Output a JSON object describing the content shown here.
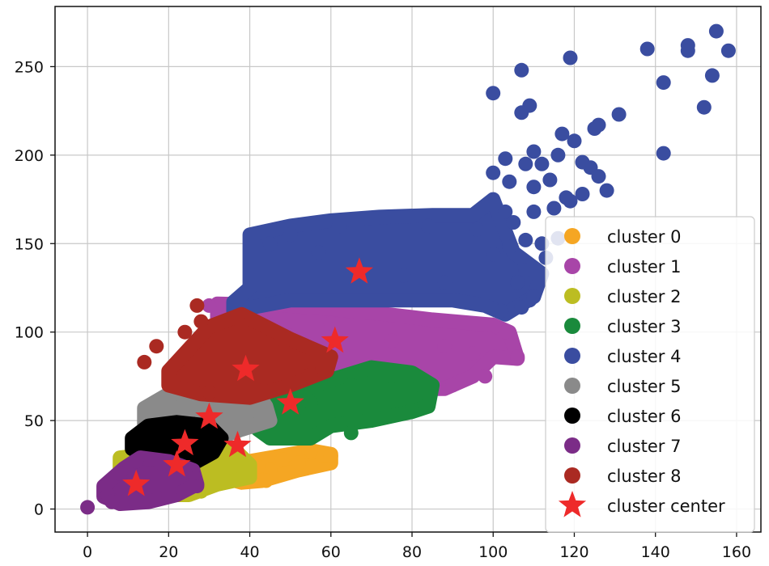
{
  "chart_data": {
    "type": "scatter",
    "title": "",
    "xlabel": "",
    "ylabel": "",
    "xlim": [
      -8,
      166
    ],
    "ylim": [
      -13,
      284
    ],
    "grid": true,
    "legend_position": "lower right",
    "x_ticks": [
      0,
      20,
      40,
      60,
      80,
      100,
      120,
      140,
      160
    ],
    "y_ticks": [
      0,
      50,
      100,
      150,
      200,
      250
    ],
    "x_tick_labels": [
      "0",
      "20",
      "40",
      "60",
      "80",
      "100",
      "120",
      "140",
      "160"
    ],
    "y_tick_labels": [
      "0",
      "50",
      "100",
      "150",
      "200",
      "250"
    ],
    "series": [
      {
        "name": "cluster 0",
        "color": "#f5a623",
        "region": [
          [
            18,
            23
          ],
          [
            40,
            27
          ],
          [
            50,
            31
          ],
          [
            55,
            33
          ],
          [
            60,
            31
          ],
          [
            60,
            26
          ],
          [
            52,
            22
          ],
          [
            43,
            16
          ],
          [
            38,
            15
          ],
          [
            30,
            20
          ],
          [
            20,
            20
          ]
        ],
        "points": [
          [
            32,
            19
          ],
          [
            38,
            17
          ],
          [
            45,
            22
          ],
          [
            52,
            26
          ],
          [
            58,
            30
          ],
          [
            48,
            28
          ],
          [
            42,
            24
          ],
          [
            36,
            22
          ],
          [
            55,
            33
          ],
          [
            60,
            30
          ],
          [
            22,
            22
          ],
          [
            44,
            16
          ]
        ]
      },
      {
        "name": "cluster 1",
        "color": "#a845a8",
        "region": [
          [
            32,
            116
          ],
          [
            50,
            115
          ],
          [
            70,
            111
          ],
          [
            85,
            107
          ],
          [
            100,
            104
          ],
          [
            104,
            100
          ],
          [
            106,
            85
          ],
          [
            100,
            86
          ],
          [
            95,
            75
          ],
          [
            88,
            68
          ],
          [
            80,
            68
          ],
          [
            70,
            73
          ],
          [
            50,
            87
          ],
          [
            40,
            95
          ],
          [
            32,
            108
          ]
        ],
        "points": [
          [
            30,
            115
          ],
          [
            103,
            100
          ],
          [
            106,
            86
          ],
          [
            98,
            75
          ],
          [
            90,
            70
          ],
          [
            82,
            68
          ],
          [
            75,
            95
          ],
          [
            60,
            105
          ],
          [
            45,
            112
          ],
          [
            88,
            92
          ],
          [
            95,
            88
          ],
          [
            50,
            98
          ]
        ]
      },
      {
        "name": "cluster 2",
        "color": "#bcbd22",
        "region": [
          [
            8,
            29
          ],
          [
            20,
            32
          ],
          [
            30,
            36
          ],
          [
            36,
            34
          ],
          [
            40,
            25
          ],
          [
            40,
            18
          ],
          [
            32,
            14
          ],
          [
            25,
            8
          ],
          [
            18,
            8
          ],
          [
            12,
            12
          ],
          [
            8,
            22
          ]
        ],
        "points": [
          [
            12,
            28
          ],
          [
            22,
            32
          ],
          [
            30,
            30
          ],
          [
            38,
            24
          ],
          [
            39,
            18
          ],
          [
            33,
            15
          ],
          [
            28,
            10
          ],
          [
            22,
            12
          ],
          [
            16,
            20
          ],
          [
            26,
            24
          ]
        ]
      },
      {
        "name": "cluster 3",
        "color": "#1a8a3c",
        "region": [
          [
            40,
            60
          ],
          [
            50,
            65
          ],
          [
            60,
            73
          ],
          [
            70,
            80
          ],
          [
            80,
            77
          ],
          [
            85,
            70
          ],
          [
            84,
            58
          ],
          [
            80,
            55
          ],
          [
            70,
            50
          ],
          [
            60,
            47
          ],
          [
            55,
            40
          ],
          [
            45,
            40
          ],
          [
            42,
            45
          ],
          [
            40,
            50
          ]
        ],
        "points": [
          [
            42,
            50
          ],
          [
            55,
            60
          ],
          [
            65,
            70
          ],
          [
            75,
            75
          ],
          [
            82,
            70
          ],
          [
            84,
            64
          ],
          [
            80,
            56
          ],
          [
            65,
            50
          ],
          [
            58,
            45
          ],
          [
            65,
            43
          ],
          [
            62,
            48
          ],
          [
            48,
            58
          ]
        ]
      },
      {
        "name": "cluster 4",
        "color": "#3a4da0",
        "region": [
          [
            36,
            117
          ],
          [
            40,
            125
          ],
          [
            40,
            155
          ],
          [
            50,
            160
          ],
          [
            60,
            163
          ],
          [
            72,
            165
          ],
          [
            85,
            166
          ],
          [
            95,
            166
          ],
          [
            100,
            175
          ],
          [
            105,
            145
          ],
          [
            112,
            133
          ],
          [
            110,
            120
          ],
          [
            103,
            110
          ],
          [
            98,
            115
          ],
          [
            90,
            118
          ],
          [
            70,
            118
          ],
          [
            50,
            118
          ],
          [
            36,
            112
          ]
        ],
        "points": [
          [
            138,
            260
          ],
          [
            148,
            262
          ],
          [
            148,
            259
          ],
          [
            155,
            270
          ],
          [
            158,
            259
          ],
          [
            142,
            241
          ],
          [
            154,
            245
          ],
          [
            152,
            227
          ],
          [
            142,
            201
          ],
          [
            100,
            235
          ],
          [
            107,
            248
          ],
          [
            109,
            228
          ],
          [
            107,
            224
          ],
          [
            119,
            255
          ],
          [
            131,
            223
          ],
          [
            126,
            217
          ],
          [
            125,
            215
          ],
          [
            110,
            202
          ],
          [
            117,
            212
          ],
          [
            120,
            208
          ],
          [
            103,
            198
          ],
          [
            108,
            195
          ],
          [
            112,
            195
          ],
          [
            116,
            200
          ],
          [
            100,
            190
          ],
          [
            104,
            185
          ],
          [
            110,
            182
          ],
          [
            114,
            186
          ],
          [
            118,
            176
          ],
          [
            122,
            178
          ],
          [
            124,
            193
          ],
          [
            126,
            188
          ],
          [
            122,
            196
          ],
          [
            128,
            180
          ],
          [
            115,
            170
          ],
          [
            110,
            168
          ],
          [
            119,
            174
          ],
          [
            103,
            168
          ],
          [
            105,
            162
          ],
          [
            108,
            152
          ],
          [
            112,
            150
          ],
          [
            116,
            153
          ],
          [
            104,
            148
          ],
          [
            108,
            135
          ],
          [
            106,
            128
          ],
          [
            109,
            118
          ],
          [
            107,
            114
          ],
          [
            110,
            120
          ],
          [
            113,
            142
          ],
          [
            102,
            112
          ],
          [
            62,
            160
          ],
          [
            50,
            155
          ],
          [
            45,
            150
          ],
          [
            57,
            145
          ],
          [
            78,
            132
          ],
          [
            88,
            128
          ],
          [
            96,
            158
          ],
          [
            100,
            144
          ],
          [
            84,
            160
          ]
        ]
      },
      {
        "name": "cluster 5",
        "color": "#8a8a8a",
        "region": [
          [
            14,
            57
          ],
          [
            20,
            65
          ],
          [
            30,
            67
          ],
          [
            42,
            65
          ],
          [
            44,
            58
          ],
          [
            45,
            50
          ],
          [
            38,
            45
          ],
          [
            32,
            40
          ],
          [
            23,
            40
          ],
          [
            14,
            48
          ]
        ],
        "points": [
          [
            15,
            55
          ],
          [
            20,
            62
          ],
          [
            28,
            66
          ],
          [
            38,
            62
          ],
          [
            44,
            54
          ],
          [
            40,
            48
          ],
          [
            32,
            43
          ],
          [
            22,
            44
          ],
          [
            30,
            55
          ],
          [
            26,
            60
          ]
        ]
      },
      {
        "name": "cluster 6",
        "color": "#000000",
        "region": [
          [
            11,
            40
          ],
          [
            15,
            47
          ],
          [
            22,
            49
          ],
          [
            30,
            47
          ],
          [
            33,
            40
          ],
          [
            31,
            32
          ],
          [
            27,
            27
          ],
          [
            20,
            26
          ],
          [
            14,
            30
          ],
          [
            11,
            34
          ]
        ],
        "points": [
          [
            12,
            38
          ],
          [
            18,
            46
          ],
          [
            26,
            48
          ],
          [
            32,
            42
          ],
          [
            30,
            32
          ],
          [
            24,
            28
          ],
          [
            16,
            31
          ],
          [
            20,
            38
          ]
        ]
      },
      {
        "name": "cluster 7",
        "color": "#7b2c87",
        "region": [
          [
            4,
            13
          ],
          [
            9,
            23
          ],
          [
            13,
            29
          ],
          [
            20,
            27
          ],
          [
            26,
            22
          ],
          [
            27,
            14
          ],
          [
            22,
            8
          ],
          [
            15,
            4
          ],
          [
            8,
            3
          ],
          [
            4,
            7
          ]
        ],
        "points": [
          [
            0,
            1
          ],
          [
            5,
            8
          ],
          [
            8,
            20
          ],
          [
            12,
            27
          ],
          [
            18,
            26
          ],
          [
            24,
            21
          ],
          [
            27,
            13
          ],
          [
            20,
            8
          ],
          [
            12,
            5
          ],
          [
            6,
            4
          ]
        ]
      },
      {
        "name": "cluster 8",
        "color": "#aa2a22",
        "region": [
          [
            20,
            78
          ],
          [
            30,
            103
          ],
          [
            38,
            110
          ],
          [
            50,
            96
          ],
          [
            60,
            86
          ],
          [
            59,
            78
          ],
          [
            50,
            70
          ],
          [
            40,
            63
          ],
          [
            28,
            65
          ],
          [
            20,
            70
          ]
        ],
        "points": [
          [
            14,
            83
          ],
          [
            17,
            92
          ],
          [
            24,
            100
          ],
          [
            28,
            106
          ],
          [
            27,
            115
          ],
          [
            21,
            72
          ],
          [
            30,
            66
          ],
          [
            42,
            67
          ],
          [
            55,
            76
          ],
          [
            58,
            80
          ],
          [
            48,
            96
          ],
          [
            38,
            104
          ]
        ]
      }
    ],
    "cluster_centers": {
      "name": "cluster center",
      "color": "#ee2a2a",
      "points": [
        [
          67,
          134
        ],
        [
          61,
          95
        ],
        [
          39,
          79
        ],
        [
          50,
          60
        ],
        [
          30,
          52
        ],
        [
          24,
          37
        ],
        [
          37,
          36
        ],
        [
          22,
          25
        ],
        [
          12,
          14
        ]
      ]
    }
  }
}
